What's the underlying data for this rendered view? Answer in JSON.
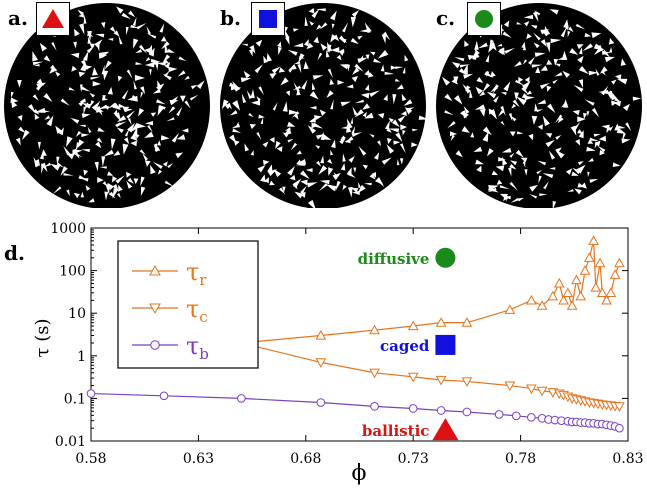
{
  "panels": [
    {
      "label": "a.",
      "marker": "triangle",
      "color": "#dd1111"
    },
    {
      "label": "b.",
      "marker": "square",
      "color": "#1111dd"
    },
    {
      "label": "c.",
      "marker": "circle",
      "color": "#1a8a1a"
    }
  ],
  "chart_label": "d.",
  "chart_data": {
    "type": "line",
    "xlabel": "ϕ",
    "ylabel": "τ (s)",
    "xlim": [
      0.58,
      0.83
    ],
    "ylim": [
      0.01,
      1000
    ],
    "yscale": "log",
    "xticks": [
      "0.58",
      "0.63",
      "0.68",
      "0.73",
      "0.78",
      "0.83"
    ],
    "yticks": [
      "0.01",
      "0.1",
      "1",
      "10",
      "100",
      "1000"
    ],
    "legend_position": "top-left",
    "series": [
      {
        "name": "τr",
        "base": "τ",
        "sub": "r",
        "color": "#e8741f",
        "marker": "triangle-up",
        "x": [
          0.65,
          0.687,
          0.712,
          0.73,
          0.743,
          0.755,
          0.775,
          0.785,
          0.79,
          0.795,
          0.798,
          0.8,
          0.802,
          0.804,
          0.806,
          0.808,
          0.81,
          0.812,
          0.814,
          0.815,
          0.817,
          0.818,
          0.82,
          0.822,
          0.824,
          0.826
        ],
        "y": [
          2,
          3,
          4,
          5,
          6,
          6,
          12,
          20,
          15,
          25,
          50,
          20,
          30,
          15,
          60,
          25,
          100,
          200,
          500,
          40,
          150,
          30,
          20,
          30,
          80,
          150
        ]
      },
      {
        "name": "τc",
        "base": "τ",
        "sub": "c",
        "color": "#e8741f",
        "marker": "triangle-down",
        "x": [
          0.65,
          0.687,
          0.712,
          0.73,
          0.743,
          0.755,
          0.775,
          0.785,
          0.79,
          0.795,
          0.798,
          0.8,
          0.802,
          0.804,
          0.806,
          0.808,
          0.81,
          0.812,
          0.814,
          0.816,
          0.818,
          0.82,
          0.822,
          0.824,
          0.826
        ],
        "y": [
          2,
          0.7,
          0.4,
          0.32,
          0.27,
          0.25,
          0.2,
          0.17,
          0.15,
          0.14,
          0.13,
          0.12,
          0.11,
          0.1,
          0.095,
          0.09,
          0.085,
          0.08,
          0.078,
          0.075,
          0.072,
          0.07,
          0.068,
          0.066,
          0.065
        ]
      },
      {
        "name": "τb",
        "base": "τ",
        "sub": "b",
        "color": "#7a3fc4",
        "marker": "circle",
        "x": [
          0.58,
          0.614,
          0.65,
          0.687,
          0.712,
          0.73,
          0.743,
          0.755,
          0.77,
          0.778,
          0.785,
          0.79,
          0.793,
          0.796,
          0.799,
          0.802,
          0.804,
          0.806,
          0.808,
          0.81,
          0.812,
          0.814,
          0.816,
          0.818,
          0.82,
          0.822,
          0.824,
          0.826
        ],
        "y": [
          0.13,
          0.115,
          0.1,
          0.08,
          0.065,
          0.058,
          0.052,
          0.048,
          0.042,
          0.039,
          0.036,
          0.034,
          0.032,
          0.031,
          0.03,
          0.029,
          0.028,
          0.028,
          0.027,
          0.027,
          0.026,
          0.026,
          0.025,
          0.025,
          0.024,
          0.023,
          0.022,
          0.02
        ]
      }
    ],
    "annotations": [
      {
        "text": "diffusive",
        "color": "#1a8a1a",
        "marker": "circle",
        "x": 0.745,
        "y": 200
      },
      {
        "text": "caged",
        "color": "#1111dd",
        "marker": "square",
        "x": 0.745,
        "y": 1.8
      },
      {
        "text": "ballistic",
        "color": "#dd1111",
        "marker": "triangle",
        "x": 0.745,
        "y": 0.018
      }
    ]
  }
}
